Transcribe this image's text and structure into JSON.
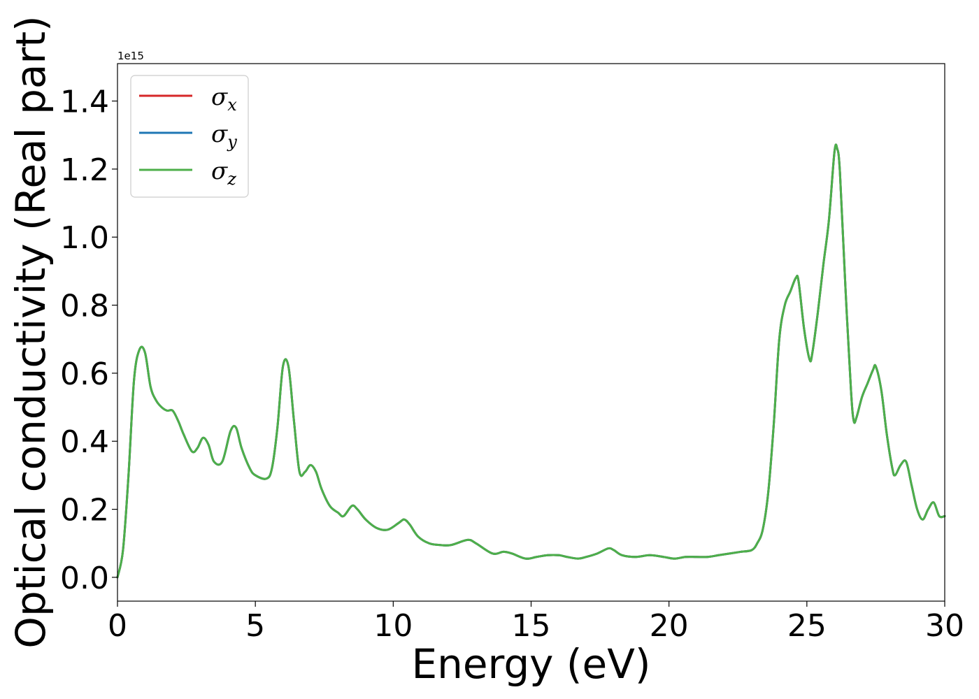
{
  "chart_data": {
    "type": "line",
    "xlabel": "Energy (eV)",
    "ylabel": "Optical conductivity (Real part)",
    "y_offset_label": "1e15",
    "xlim": [
      0,
      30
    ],
    "ylim": [
      -0.07,
      1.51
    ],
    "x_ticks": [
      0,
      5,
      10,
      15,
      20,
      25,
      30
    ],
    "x_tick_labels": [
      "0",
      "5",
      "10",
      "15",
      "20",
      "25",
      "30"
    ],
    "y_ticks": [
      0.0,
      0.2,
      0.4,
      0.6,
      0.8,
      1.0,
      1.2,
      1.4
    ],
    "y_tick_labels": [
      "0.0",
      "0.2",
      "0.4",
      "0.6",
      "0.8",
      "1.0",
      "1.2",
      "1.4"
    ],
    "grid": false,
    "legend_position": "upper-left",
    "x": [
      0,
      0.2,
      0.4,
      0.6,
      0.8,
      1.0,
      1.2,
      1.4,
      1.6,
      1.8,
      2.0,
      2.2,
      2.4,
      2.7,
      2.9,
      3.1,
      3.3,
      3.5,
      3.8,
      4.1,
      4.3,
      4.5,
      4.8,
      5.0,
      5.4,
      5.6,
      5.8,
      6.0,
      6.2,
      6.4,
      6.6,
      6.8,
      7.0,
      7.2,
      7.4,
      7.7,
      8.0,
      8.2,
      8.5,
      8.7,
      9.0,
      9.4,
      9.8,
      10.2,
      10.4,
      10.6,
      10.9,
      11.3,
      11.7,
      12.1,
      12.7,
      13.0,
      13.6,
      14.0,
      14.3,
      14.8,
      15.2,
      15.6,
      16.0,
      16.3,
      16.7,
      17.0,
      17.4,
      17.8,
      18.0,
      18.3,
      18.8,
      19.3,
      19.8,
      20.2,
      20.6,
      21.0,
      21.4,
      21.8,
      22.2,
      22.6,
      23.0,
      23.2,
      23.4,
      23.6,
      23.8,
      24.0,
      24.2,
      24.4,
      24.6,
      24.7,
      24.9,
      25.1,
      25.2,
      25.4,
      25.6,
      25.8,
      26.0,
      26.1,
      26.2,
      26.4,
      26.6,
      26.7,
      26.8,
      27.0,
      27.2,
      27.4,
      27.5,
      27.7,
      27.9,
      28.1,
      28.2,
      28.4,
      28.6,
      28.8,
      29.0,
      29.2,
      29.4,
      29.6,
      29.8,
      30.0
    ],
    "series": [
      {
        "name": "σ_x",
        "color": "#d62728",
        "values": [
          0.0,
          0.08,
          0.3,
          0.58,
          0.67,
          0.66,
          0.56,
          0.52,
          0.5,
          0.49,
          0.49,
          0.46,
          0.42,
          0.37,
          0.38,
          0.41,
          0.39,
          0.34,
          0.34,
          0.43,
          0.44,
          0.38,
          0.32,
          0.3,
          0.29,
          0.32,
          0.44,
          0.62,
          0.62,
          0.46,
          0.31,
          0.31,
          0.33,
          0.31,
          0.26,
          0.21,
          0.19,
          0.18,
          0.21,
          0.2,
          0.17,
          0.145,
          0.14,
          0.16,
          0.17,
          0.155,
          0.12,
          0.1,
          0.095,
          0.095,
          0.11,
          0.1,
          0.07,
          0.075,
          0.07,
          0.055,
          0.06,
          0.065,
          0.065,
          0.06,
          0.055,
          0.06,
          0.07,
          0.085,
          0.08,
          0.065,
          0.06,
          0.065,
          0.06,
          0.055,
          0.06,
          0.06,
          0.06,
          0.065,
          0.07,
          0.075,
          0.08,
          0.1,
          0.14,
          0.25,
          0.45,
          0.7,
          0.8,
          0.84,
          0.88,
          0.87,
          0.73,
          0.64,
          0.66,
          0.78,
          0.92,
          1.05,
          1.25,
          1.26,
          1.19,
          0.85,
          0.55,
          0.46,
          0.47,
          0.53,
          0.57,
          0.61,
          0.62,
          0.55,
          0.42,
          0.32,
          0.3,
          0.33,
          0.34,
          0.27,
          0.2,
          0.17,
          0.2,
          0.22,
          0.18,
          0.18
        ]
      },
      {
        "name": "σ_y",
        "color": "#1f77b4",
        "values": [
          0.0,
          0.08,
          0.3,
          0.58,
          0.67,
          0.66,
          0.56,
          0.52,
          0.5,
          0.49,
          0.49,
          0.46,
          0.42,
          0.37,
          0.38,
          0.41,
          0.39,
          0.34,
          0.34,
          0.43,
          0.44,
          0.38,
          0.32,
          0.3,
          0.29,
          0.32,
          0.44,
          0.62,
          0.62,
          0.46,
          0.31,
          0.31,
          0.33,
          0.31,
          0.26,
          0.21,
          0.19,
          0.18,
          0.21,
          0.2,
          0.17,
          0.145,
          0.14,
          0.16,
          0.17,
          0.155,
          0.12,
          0.1,
          0.095,
          0.095,
          0.11,
          0.1,
          0.07,
          0.075,
          0.07,
          0.055,
          0.06,
          0.065,
          0.065,
          0.06,
          0.055,
          0.06,
          0.07,
          0.085,
          0.08,
          0.065,
          0.06,
          0.065,
          0.06,
          0.055,
          0.06,
          0.06,
          0.06,
          0.065,
          0.07,
          0.075,
          0.08,
          0.1,
          0.14,
          0.25,
          0.45,
          0.7,
          0.8,
          0.84,
          0.88,
          0.87,
          0.73,
          0.64,
          0.66,
          0.78,
          0.92,
          1.05,
          1.25,
          1.26,
          1.19,
          0.85,
          0.55,
          0.46,
          0.47,
          0.53,
          0.57,
          0.61,
          0.62,
          0.55,
          0.42,
          0.32,
          0.3,
          0.33,
          0.34,
          0.27,
          0.2,
          0.17,
          0.2,
          0.22,
          0.18,
          0.18
        ]
      },
      {
        "name": "σ_z",
        "color": "#4daf4a",
        "values": [
          0.0,
          0.08,
          0.3,
          0.58,
          0.67,
          0.66,
          0.56,
          0.52,
          0.5,
          0.49,
          0.49,
          0.46,
          0.42,
          0.37,
          0.38,
          0.41,
          0.39,
          0.34,
          0.34,
          0.43,
          0.44,
          0.38,
          0.32,
          0.3,
          0.29,
          0.32,
          0.44,
          0.62,
          0.62,
          0.46,
          0.31,
          0.31,
          0.33,
          0.31,
          0.26,
          0.21,
          0.19,
          0.18,
          0.21,
          0.2,
          0.17,
          0.145,
          0.14,
          0.16,
          0.17,
          0.155,
          0.12,
          0.1,
          0.095,
          0.095,
          0.11,
          0.1,
          0.07,
          0.075,
          0.07,
          0.055,
          0.06,
          0.065,
          0.065,
          0.06,
          0.055,
          0.06,
          0.07,
          0.085,
          0.08,
          0.065,
          0.06,
          0.065,
          0.06,
          0.055,
          0.06,
          0.06,
          0.06,
          0.065,
          0.07,
          0.075,
          0.08,
          0.1,
          0.14,
          0.25,
          0.45,
          0.7,
          0.8,
          0.84,
          0.88,
          0.87,
          0.73,
          0.64,
          0.66,
          0.78,
          0.92,
          1.05,
          1.25,
          1.26,
          1.19,
          0.85,
          0.55,
          0.46,
          0.47,
          0.53,
          0.57,
          0.61,
          0.62,
          0.55,
          0.42,
          0.32,
          0.3,
          0.33,
          0.34,
          0.27,
          0.2,
          0.17,
          0.2,
          0.22,
          0.18,
          0.18
        ]
      }
    ],
    "legend": [
      {
        "symbol": "σ",
        "subscript": "x",
        "color": "#d62728"
      },
      {
        "symbol": "σ",
        "subscript": "y",
        "color": "#1f77b4"
      },
      {
        "symbol": "σ",
        "subscript": "z",
        "color": "#4daf4a"
      }
    ]
  }
}
